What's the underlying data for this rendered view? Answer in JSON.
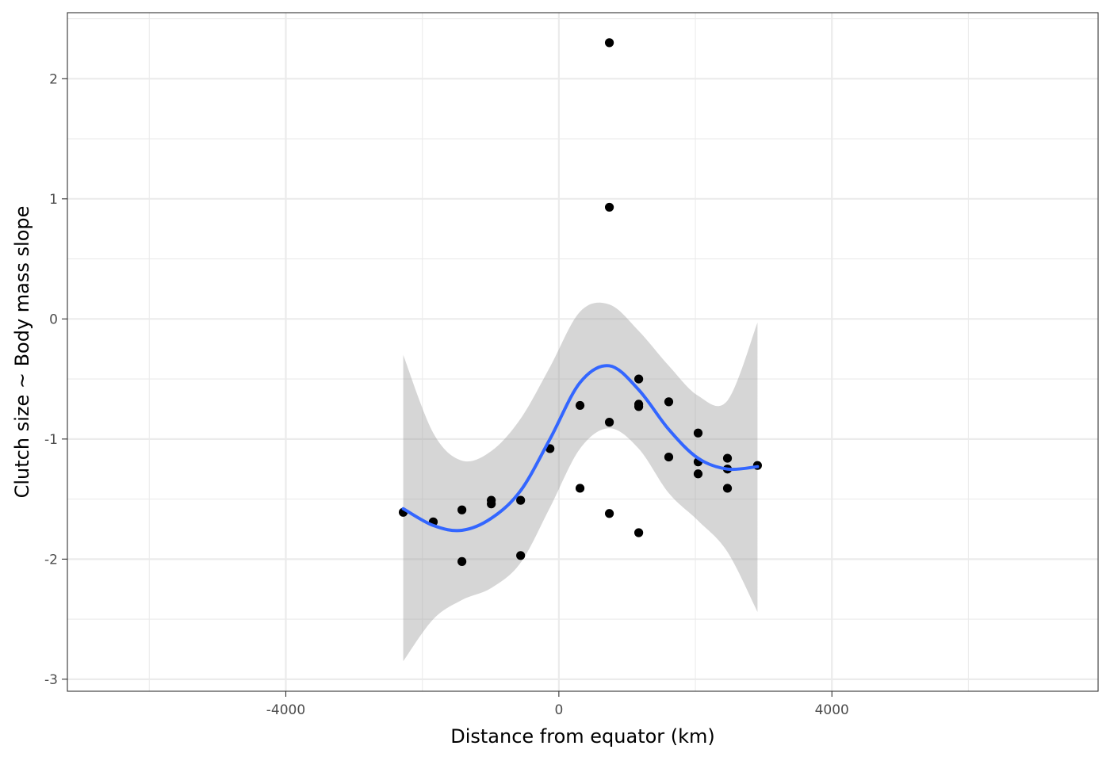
{
  "chart_data": {
    "type": "scatter",
    "xlabel": "Distance from equator (km)",
    "ylabel": "Clutch size ~ Body mass slope",
    "xlim": [
      -7200,
      7900
    ],
    "ylim": [
      -3.1,
      2.55
    ],
    "x_ticks": [
      -4000,
      0,
      4000
    ],
    "y_ticks": [
      -3,
      -2,
      -1,
      0,
      1,
      2
    ],
    "x_tick_labels": [
      "-4000",
      "0",
      "4000"
    ],
    "y_tick_labels": [
      "-3",
      "-2",
      "-1",
      "0",
      "1",
      "2"
    ],
    "grid": true,
    "points": [
      {
        "x": -2280,
        "y": -1.61
      },
      {
        "x": -1840,
        "y": -1.69
      },
      {
        "x": -1420,
        "y": -1.59
      },
      {
        "x": -1420,
        "y": -2.02
      },
      {
        "x": -990,
        "y": -1.51
      },
      {
        "x": -990,
        "y": -1.54
      },
      {
        "x": -560,
        "y": -1.51
      },
      {
        "x": -560,
        "y": -1.97
      },
      {
        "x": -130,
        "y": -1.08
      },
      {
        "x": 310,
        "y": -0.72
      },
      {
        "x": 310,
        "y": -1.41
      },
      {
        "x": 740,
        "y": 2.3
      },
      {
        "x": 740,
        "y": 0.93
      },
      {
        "x": 740,
        "y": -0.86
      },
      {
        "x": 740,
        "y": -1.62
      },
      {
        "x": 1170,
        "y": -0.5
      },
      {
        "x": 1170,
        "y": -0.71
      },
      {
        "x": 1170,
        "y": -0.73
      },
      {
        "x": 1170,
        "y": -1.78
      },
      {
        "x": 1610,
        "y": -0.69
      },
      {
        "x": 1610,
        "y": -1.15
      },
      {
        "x": 2040,
        "y": -0.95
      },
      {
        "x": 2040,
        "y": -1.19
      },
      {
        "x": 2040,
        "y": -1.29
      },
      {
        "x": 2470,
        "y": -1.16
      },
      {
        "x": 2470,
        "y": -1.25
      },
      {
        "x": 2470,
        "y": -1.41
      },
      {
        "x": 2910,
        "y": -1.22
      }
    ],
    "smooth": {
      "method": "loess",
      "color": "#3366ff",
      "ribbon_color": "#999999",
      "x": [
        -2280,
        -1840,
        -1420,
        -990,
        -560,
        -130,
        310,
        740,
        1170,
        1610,
        2040,
        2470,
        2910
      ],
      "y": [
        -1.58,
        -1.72,
        -1.76,
        -1.66,
        -1.43,
        -1.0,
        -0.53,
        -0.39,
        -0.59,
        -0.92,
        -1.16,
        -1.25,
        -1.23
      ],
      "ymin": [
        -2.85,
        -2.5,
        -2.34,
        -2.24,
        -2.03,
        -1.57,
        -1.08,
        -0.91,
        -1.08,
        -1.45,
        -1.68,
        -1.94,
        -2.44
      ],
      "ymax": [
        -0.3,
        -0.95,
        -1.18,
        -1.1,
        -0.83,
        -0.4,
        0.06,
        0.12,
        -0.1,
        -0.39,
        -0.64,
        -0.68,
        -0.03
      ]
    }
  }
}
